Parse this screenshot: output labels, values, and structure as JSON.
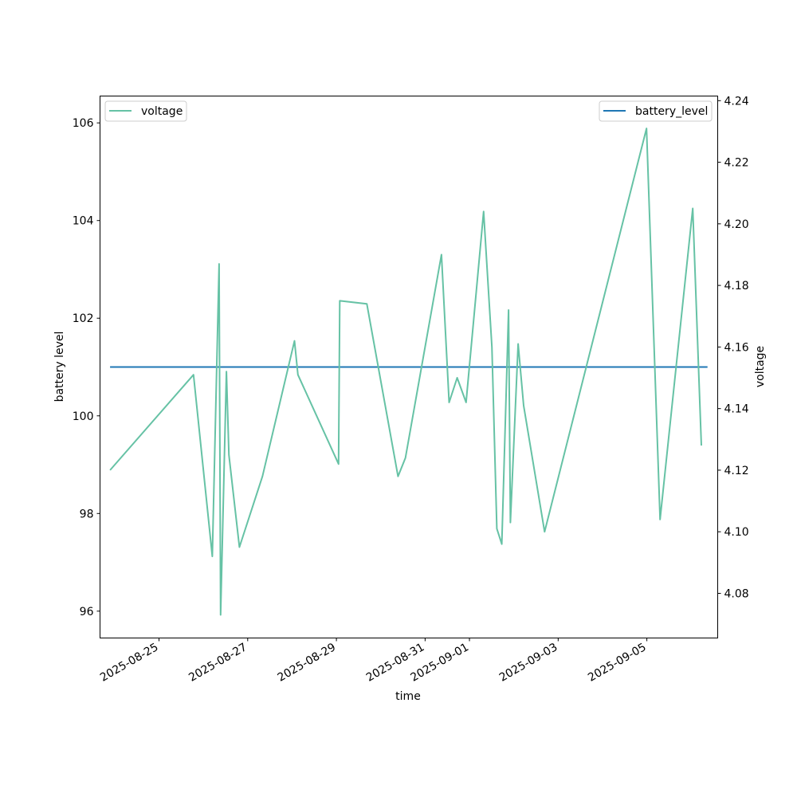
{
  "chart_data": {
    "type": "line",
    "xlabel": "time",
    "ylabel_left": "battery level",
    "ylabel_right": "voltage",
    "x_ticks": [
      "2025-08-25",
      "2025-08-27",
      "2025-08-29",
      "2025-08-31",
      "2025-09-01",
      "2025-09-03",
      "2025-09-05"
    ],
    "xlim": [
      "2025-08-23T16:05",
      "2025-09-06T14:20"
    ],
    "ylim_left": [
      95.45,
      106.55
    ],
    "ylim_right": [
      4.0655,
      4.2415
    ],
    "y_ticks_left": [
      96,
      98,
      100,
      102,
      104,
      106
    ],
    "y_ticks_right": [
      4.08,
      4.1,
      4.12,
      4.14,
      4.16,
      4.18,
      4.2,
      4.22,
      4.24
    ],
    "legend_left": {
      "label": "voltage",
      "placement": "upper left"
    },
    "legend_right": {
      "label": "battery_level",
      "placement": "upper right"
    },
    "grid": false,
    "series": [
      {
        "name": "battery_level",
        "axis": "left",
        "color": "#1f77b4",
        "x": [
          "2025-08-23T21:30",
          "2025-09-06T08:50"
        ],
        "y": [
          101,
          101
        ]
      },
      {
        "name": "voltage",
        "axis": "right",
        "color": "#66c2a5",
        "x": [
          "2025-08-23T21:30",
          "2025-08-25T18:40",
          "2025-08-26T04:50",
          "2025-08-26T08:30",
          "2025-08-26T09:20",
          "2025-08-26T12:30",
          "2025-08-26T13:50",
          "2025-08-26T19:30",
          "2025-08-27T08:00",
          "2025-08-28T01:20",
          "2025-08-28T03:10",
          "2025-08-29T01:10",
          "2025-08-29T01:50",
          "2025-08-29T16:30",
          "2025-08-30T09:20",
          "2025-08-30T13:20",
          "2025-08-31T08:50",
          "2025-08-31T13:00",
          "2025-08-31T17:20",
          "2025-08-31T22:10",
          "2025-09-01T07:40",
          "2025-09-01T12:10",
          "2025-09-01T14:50",
          "2025-09-01T17:30",
          "2025-09-01T21:10",
          "2025-09-01T22:10",
          "2025-09-02T02:20",
          "2025-09-02T05:20",
          "2025-09-02T16:40",
          "2025-09-04T23:50",
          "2025-09-05T07:10",
          "2025-09-06T00:50",
          "2025-09-06T05:30"
        ],
        "y": [
          4.12,
          4.151,
          4.092,
          4.187,
          4.073,
          4.152,
          4.125,
          4.095,
          4.118,
          4.162,
          4.151,
          4.122,
          4.175,
          4.174,
          4.118,
          4.124,
          4.19,
          4.142,
          4.15,
          4.142,
          4.204,
          4.16,
          4.101,
          4.096,
          4.172,
          4.103,
          4.161,
          4.141,
          4.1,
          4.231,
          4.104,
          4.205,
          4.128
        ]
      }
    ]
  }
}
